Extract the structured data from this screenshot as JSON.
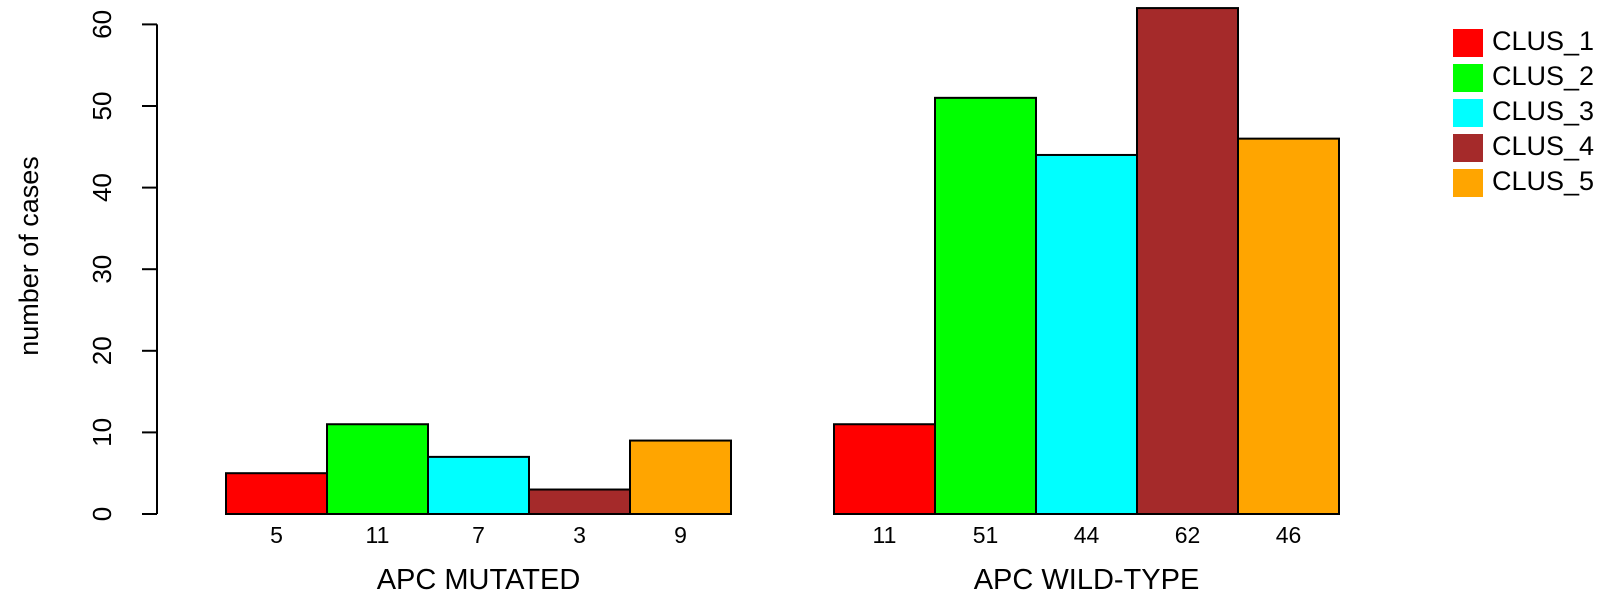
{
  "chart_data": {
    "type": "bar",
    "ylabel": "number of cases",
    "ylim": [
      0,
      62
    ],
    "yticks": [
      0,
      10,
      20,
      30,
      40,
      50,
      60
    ],
    "grid": false,
    "legend_position": "top-right",
    "groups": [
      {
        "name": "APC MUTATED",
        "values": [
          5,
          11,
          7,
          3,
          9
        ]
      },
      {
        "name": "APC WILD-TYPE",
        "values": [
          11,
          51,
          44,
          62,
          46
        ]
      }
    ],
    "series": [
      {
        "name": "CLUS_1",
        "color": "#ff0000"
      },
      {
        "name": "CLUS_2",
        "color": "#00ff00"
      },
      {
        "name": "CLUS_3",
        "color": "#00ffff"
      },
      {
        "name": "CLUS_4",
        "color": "#a52a2a"
      },
      {
        "name": "CLUS_5",
        "color": "#ffa500"
      }
    ]
  }
}
